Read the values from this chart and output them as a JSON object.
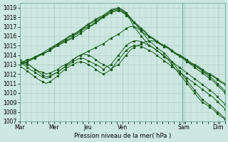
{
  "xlabel": "Pression niveau de la mer( hPa )",
  "bg_color": "#cce8e0",
  "plot_bg_color": "#cce8e0",
  "grid_color": "#a8ccc4",
  "line_color": "#1a5c1a",
  "ylim": [
    1007,
    1019.5
  ],
  "yticks": [
    1007,
    1008,
    1009,
    1010,
    1011,
    1012,
    1013,
    1014,
    1015,
    1016,
    1017,
    1018,
    1019
  ],
  "xtick_labels": [
    "Mar",
    "Mer",
    "Jeu",
    "Ven",
    "Sam",
    "Dim"
  ],
  "num_days": 6,
  "lines": [
    [
      1013.2,
      1013.3,
      1013.5,
      1013.6,
      1013.8,
      1014.0,
      1014.2,
      1014.3,
      1014.5,
      1014.8,
      1015.0,
      1015.3,
      1015.5,
      1015.7,
      1016.0,
      1016.2,
      1016.5,
      1016.8,
      1017.0,
      1017.2,
      1017.5,
      1017.8,
      1018.0,
      1018.2,
      1018.5,
      1018.6,
      1018.7,
      1018.5,
      1018.2,
      1017.8,
      1017.0,
      1016.5,
      1016.0,
      1015.5,
      1015.0,
      1014.8,
      1014.5,
      1014.2,
      1013.8,
      1013.5,
      1013.0,
      1012.5,
      1012.0,
      1011.5,
      1011.0,
      1010.5,
      1010.0,
      1009.5,
      1009.0,
      1008.8,
      1008.5,
      1008.2,
      1007.8,
      1007.5,
      1007.2
    ],
    [
      1013.0,
      1013.2,
      1013.3,
      1013.5,
      1013.7,
      1013.9,
      1014.1,
      1014.3,
      1014.5,
      1014.8,
      1015.0,
      1015.2,
      1015.4,
      1015.6,
      1015.8,
      1016.0,
      1016.3,
      1016.6,
      1016.9,
      1017.1,
      1017.4,
      1017.7,
      1018.0,
      1018.3,
      1018.7,
      1018.8,
      1018.9,
      1018.7,
      1018.4,
      1018.0,
      1017.5,
      1017.0,
      1016.5,
      1016.0,
      1015.5,
      1015.2,
      1014.8,
      1014.5,
      1014.2,
      1013.8,
      1013.3,
      1012.8,
      1012.3,
      1011.8,
      1011.3,
      1010.8,
      1010.3,
      1009.8,
      1009.3,
      1009.0,
      1008.7,
      1008.4,
      1008.0,
      1007.7,
      1007.3
    ],
    [
      1013.1,
      1013.3,
      1013.5,
      1013.6,
      1013.8,
      1014.0,
      1014.2,
      1014.5,
      1014.7,
      1015.0,
      1015.2,
      1015.5,
      1015.7,
      1016.0,
      1016.2,
      1016.4,
      1016.7,
      1017.0,
      1017.3,
      1017.5,
      1017.8,
      1018.0,
      1018.2,
      1018.5,
      1018.8,
      1018.9,
      1019.0,
      1018.8,
      1018.5,
      1018.0,
      1017.5,
      1017.2,
      1016.8,
      1016.5,
      1016.0,
      1015.8,
      1015.5,
      1015.2,
      1015.0,
      1014.8,
      1014.5,
      1014.2,
      1014.0,
      1013.8,
      1013.5,
      1013.2,
      1013.0,
      1012.8,
      1012.5,
      1012.2,
      1012.0,
      1011.8,
      1011.5,
      1011.2,
      1011.0
    ],
    [
      1013.0,
      1013.1,
      1013.3,
      1013.5,
      1013.7,
      1013.9,
      1014.1,
      1014.3,
      1014.6,
      1014.9,
      1015.1,
      1015.4,
      1015.6,
      1015.9,
      1016.1,
      1016.3,
      1016.6,
      1016.9,
      1017.2,
      1017.4,
      1017.7,
      1017.9,
      1018.1,
      1018.4,
      1018.6,
      1018.7,
      1018.8,
      1018.6,
      1018.3,
      1017.9,
      1017.4,
      1017.1,
      1016.7,
      1016.4,
      1015.9,
      1015.7,
      1015.4,
      1015.1,
      1014.9,
      1014.7,
      1014.4,
      1014.1,
      1013.9,
      1013.7,
      1013.4,
      1013.1,
      1012.9,
      1012.7,
      1012.4,
      1012.1,
      1011.9,
      1011.7,
      1011.4,
      1011.1,
      1010.9
    ],
    [
      1013.3,
      1013.1,
      1013.0,
      1012.8,
      1012.5,
      1012.3,
      1012.2,
      1012.0,
      1012.1,
      1012.3,
      1012.5,
      1012.8,
      1013.0,
      1013.2,
      1013.5,
      1013.8,
      1014.0,
      1014.2,
      1014.4,
      1014.6,
      1014.8,
      1015.0,
      1015.2,
      1015.5,
      1015.8,
      1016.0,
      1016.2,
      1016.5,
      1016.8,
      1017.0,
      1017.0,
      1016.8,
      1016.5,
      1016.2,
      1016.0,
      1015.8,
      1015.5,
      1015.2,
      1015.0,
      1014.8,
      1014.5,
      1014.2,
      1014.0,
      1013.7,
      1013.4,
      1013.1,
      1012.9,
      1012.6,
      1012.3,
      1012.0,
      1011.7,
      1011.4,
      1011.0,
      1010.6,
      1010.2
    ],
    [
      1013.5,
      1013.3,
      1013.1,
      1012.8,
      1012.5,
      1012.2,
      1011.9,
      1011.7,
      1011.8,
      1012.0,
      1012.2,
      1012.5,
      1012.8,
      1013.2,
      1013.5,
      1013.8,
      1014.0,
      1014.1,
      1014.0,
      1013.8,
      1013.5,
      1013.2,
      1013.0,
      1012.8,
      1012.5,
      1012.8,
      1013.0,
      1013.5,
      1014.0,
      1014.5,
      1014.8,
      1015.0,
      1015.2,
      1015.4,
      1015.5,
      1015.5,
      1015.4,
      1015.2,
      1015.0,
      1014.8,
      1014.5,
      1014.2,
      1013.9,
      1013.6,
      1013.3,
      1013.0,
      1012.7,
      1012.4,
      1012.1,
      1011.8,
      1011.5,
      1011.2,
      1010.8,
      1010.4,
      1010.0
    ],
    [
      1013.2,
      1013.0,
      1012.7,
      1012.4,
      1012.2,
      1011.9,
      1011.7,
      1011.5,
      1011.7,
      1012.0,
      1012.2,
      1012.5,
      1012.8,
      1013.0,
      1013.3,
      1013.5,
      1013.7,
      1013.6,
      1013.4,
      1013.2,
      1013.0,
      1012.8,
      1012.5,
      1012.8,
      1013.0,
      1013.5,
      1014.0,
      1014.5,
      1015.0,
      1015.3,
      1015.5,
      1015.5,
      1015.4,
      1015.2,
      1015.0,
      1014.8,
      1014.5,
      1014.2,
      1013.9,
      1013.6,
      1013.3,
      1013.0,
      1012.7,
      1012.4,
      1012.1,
      1011.8,
      1011.5,
      1011.2,
      1010.9,
      1010.6,
      1010.3,
      1010.0,
      1009.6,
      1009.2,
      1008.8
    ],
    [
      1012.8,
      1012.6,
      1012.3,
      1012.0,
      1011.7,
      1011.4,
      1011.2,
      1011.0,
      1011.2,
      1011.5,
      1011.8,
      1012.2,
      1012.5,
      1012.8,
      1013.0,
      1013.2,
      1013.3,
      1013.2,
      1013.0,
      1012.8,
      1012.5,
      1012.2,
      1012.0,
      1012.2,
      1012.5,
      1013.0,
      1013.5,
      1014.0,
      1014.5,
      1014.8,
      1015.0,
      1015.0,
      1014.9,
      1014.7,
      1014.5,
      1014.3,
      1014.0,
      1013.7,
      1013.4,
      1013.1,
      1012.8,
      1012.5,
      1012.2,
      1011.9,
      1011.6,
      1011.3,
      1011.0,
      1010.7,
      1010.4,
      1010.1,
      1009.8,
      1009.5,
      1009.1,
      1008.7,
      1008.3
    ]
  ],
  "figsize": [
    3.2,
    2.0
  ],
  "dpi": 100
}
